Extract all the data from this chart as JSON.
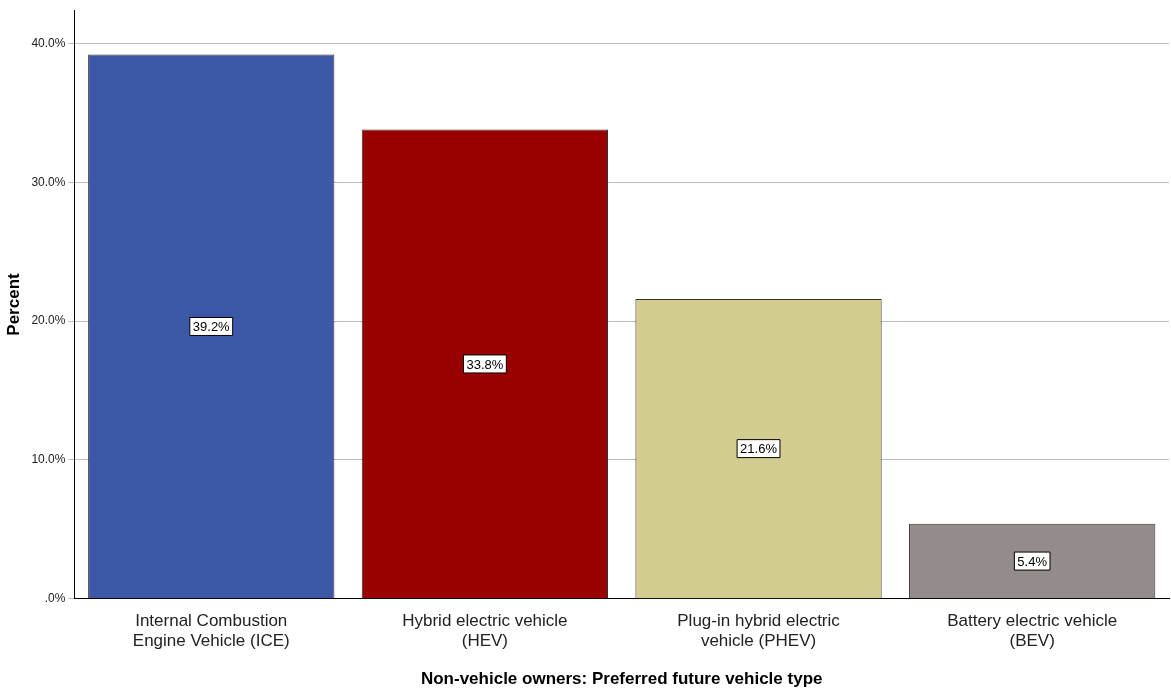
{
  "chart_data": {
    "type": "bar",
    "xlabel": "Non-vehicle owners: Preferred future vehicle type",
    "ylabel": "Percent",
    "categories": [
      "Internal Combustion Engine Vehicle (ICE)",
      "Hybrid electric vehicle (HEV)",
      "Plug-in hybrid electric vehicle (PHEV)",
      "Battery electric vehicle (BEV)"
    ],
    "values": [
      39.2,
      33.8,
      21.6,
      5.4
    ],
    "colors": [
      "#3e58a8",
      "#990000",
      "#d2cc8e",
      "#948b8b"
    ],
    "value_labels": [
      "39.2%",
      "33.8%",
      "21.6%",
      "5.4%"
    ],
    "ylim": [
      0,
      42.4
    ],
    "yticks": [
      {
        "value": 0,
        "label": ".0%"
      },
      {
        "value": 10,
        "label": "10.0%"
      },
      {
        "value": 20,
        "label": "20.0%"
      },
      {
        "value": 30,
        "label": "30.0%"
      },
      {
        "value": 40,
        "label": "40.0%"
      }
    ],
    "grid": "y",
    "legend": false
  }
}
